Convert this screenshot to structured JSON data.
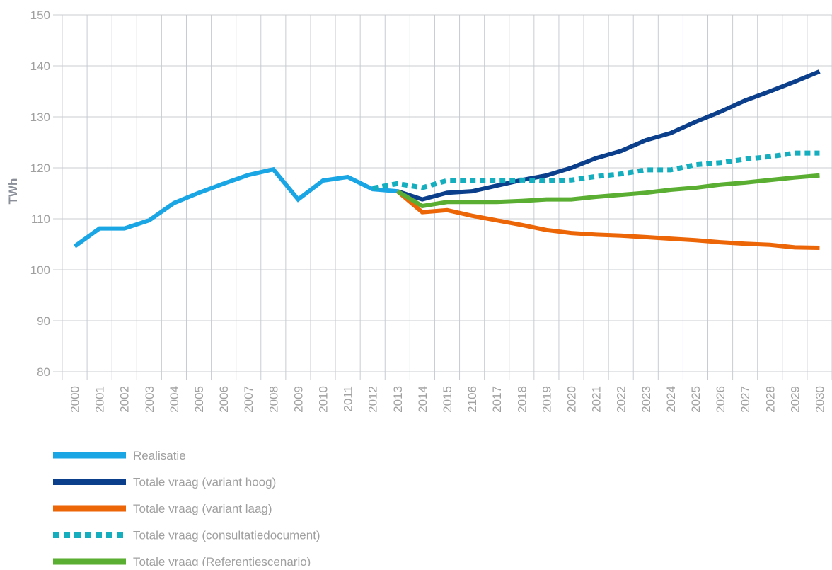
{
  "chart_data": {
    "type": "line",
    "y_label": "TWh",
    "categories": [
      "2000",
      "2001",
      "2002",
      "2003",
      "2004",
      "2005",
      "2006",
      "2007",
      "2008",
      "2009",
      "2010",
      "2011",
      "2012",
      "2013",
      "2014",
      "2015",
      "2106",
      "2017",
      "2018",
      "2019",
      "2020",
      "2021",
      "2022",
      "2023",
      "2024",
      "2025",
      "2026",
      "2027",
      "2028",
      "2029",
      "2030"
    ],
    "series": [
      {
        "name": "Realisatie",
        "color": "#1aa6e4",
        "dashed": false,
        "values": [
          104.6,
          108.1,
          108.1,
          109.7,
          113.1,
          115.1,
          116.9,
          118.6,
          119.7,
          113.8,
          117.5,
          118.2,
          115.8,
          115.4,
          null,
          null,
          null,
          null,
          null,
          null,
          null,
          null,
          null,
          null,
          null,
          null,
          null,
          null,
          null,
          null,
          null
        ]
      },
      {
        "name": "Totale vraag (variant hoog)",
        "color": "#0b3f8c",
        "dashed": false,
        "values": [
          null,
          null,
          null,
          null,
          null,
          null,
          null,
          null,
          null,
          null,
          null,
          null,
          null,
          115.4,
          113.8,
          115.1,
          115.4,
          116.5,
          117.6,
          118.5,
          120,
          121.9,
          123.3,
          125.4,
          126.8,
          129,
          131,
          133.2,
          135,
          136.9,
          138.9
        ]
      },
      {
        "name": "Totale vraag (variant laag)",
        "color": "#ec6608",
        "dashed": false,
        "values": [
          null,
          null,
          null,
          null,
          null,
          null,
          null,
          null,
          null,
          null,
          null,
          null,
          null,
          115.4,
          111.3,
          111.7,
          110.6,
          109.7,
          108.8,
          107.8,
          107.2,
          106.9,
          106.7,
          106.4,
          106.1,
          105.8,
          105.4,
          105.1,
          104.9,
          104.4,
          104.3
        ]
      },
      {
        "name": "Totale vraag (consultatiedocument)",
        "color": "#14aebe",
        "dashed": true,
        "values": [
          null,
          null,
          null,
          null,
          null,
          null,
          null,
          null,
          null,
          null,
          null,
          null,
          116,
          116.9,
          116.1,
          117.5,
          117.5,
          117.5,
          117.6,
          117.4,
          117.6,
          118.3,
          118.8,
          119.6,
          119.6,
          120.6,
          121,
          121.7,
          122.2,
          122.9,
          122.9
        ]
      },
      {
        "name": "Totale vraag (Referentiescenario)",
        "color": "#5aae32",
        "dashed": false,
        "values": [
          null,
          null,
          null,
          null,
          null,
          null,
          null,
          null,
          null,
          null,
          null,
          null,
          null,
          115.4,
          112.5,
          113.3,
          113.3,
          113.3,
          113.5,
          113.8,
          113.8,
          114.3,
          114.7,
          115.1,
          115.7,
          116.1,
          116.7,
          117.1,
          117.6,
          118.1,
          118.5
        ]
      }
    ],
    "ylim": [
      80,
      150
    ],
    "yticks": [
      80,
      90,
      100,
      110,
      120,
      130,
      140,
      150
    ],
    "grid": true
  }
}
